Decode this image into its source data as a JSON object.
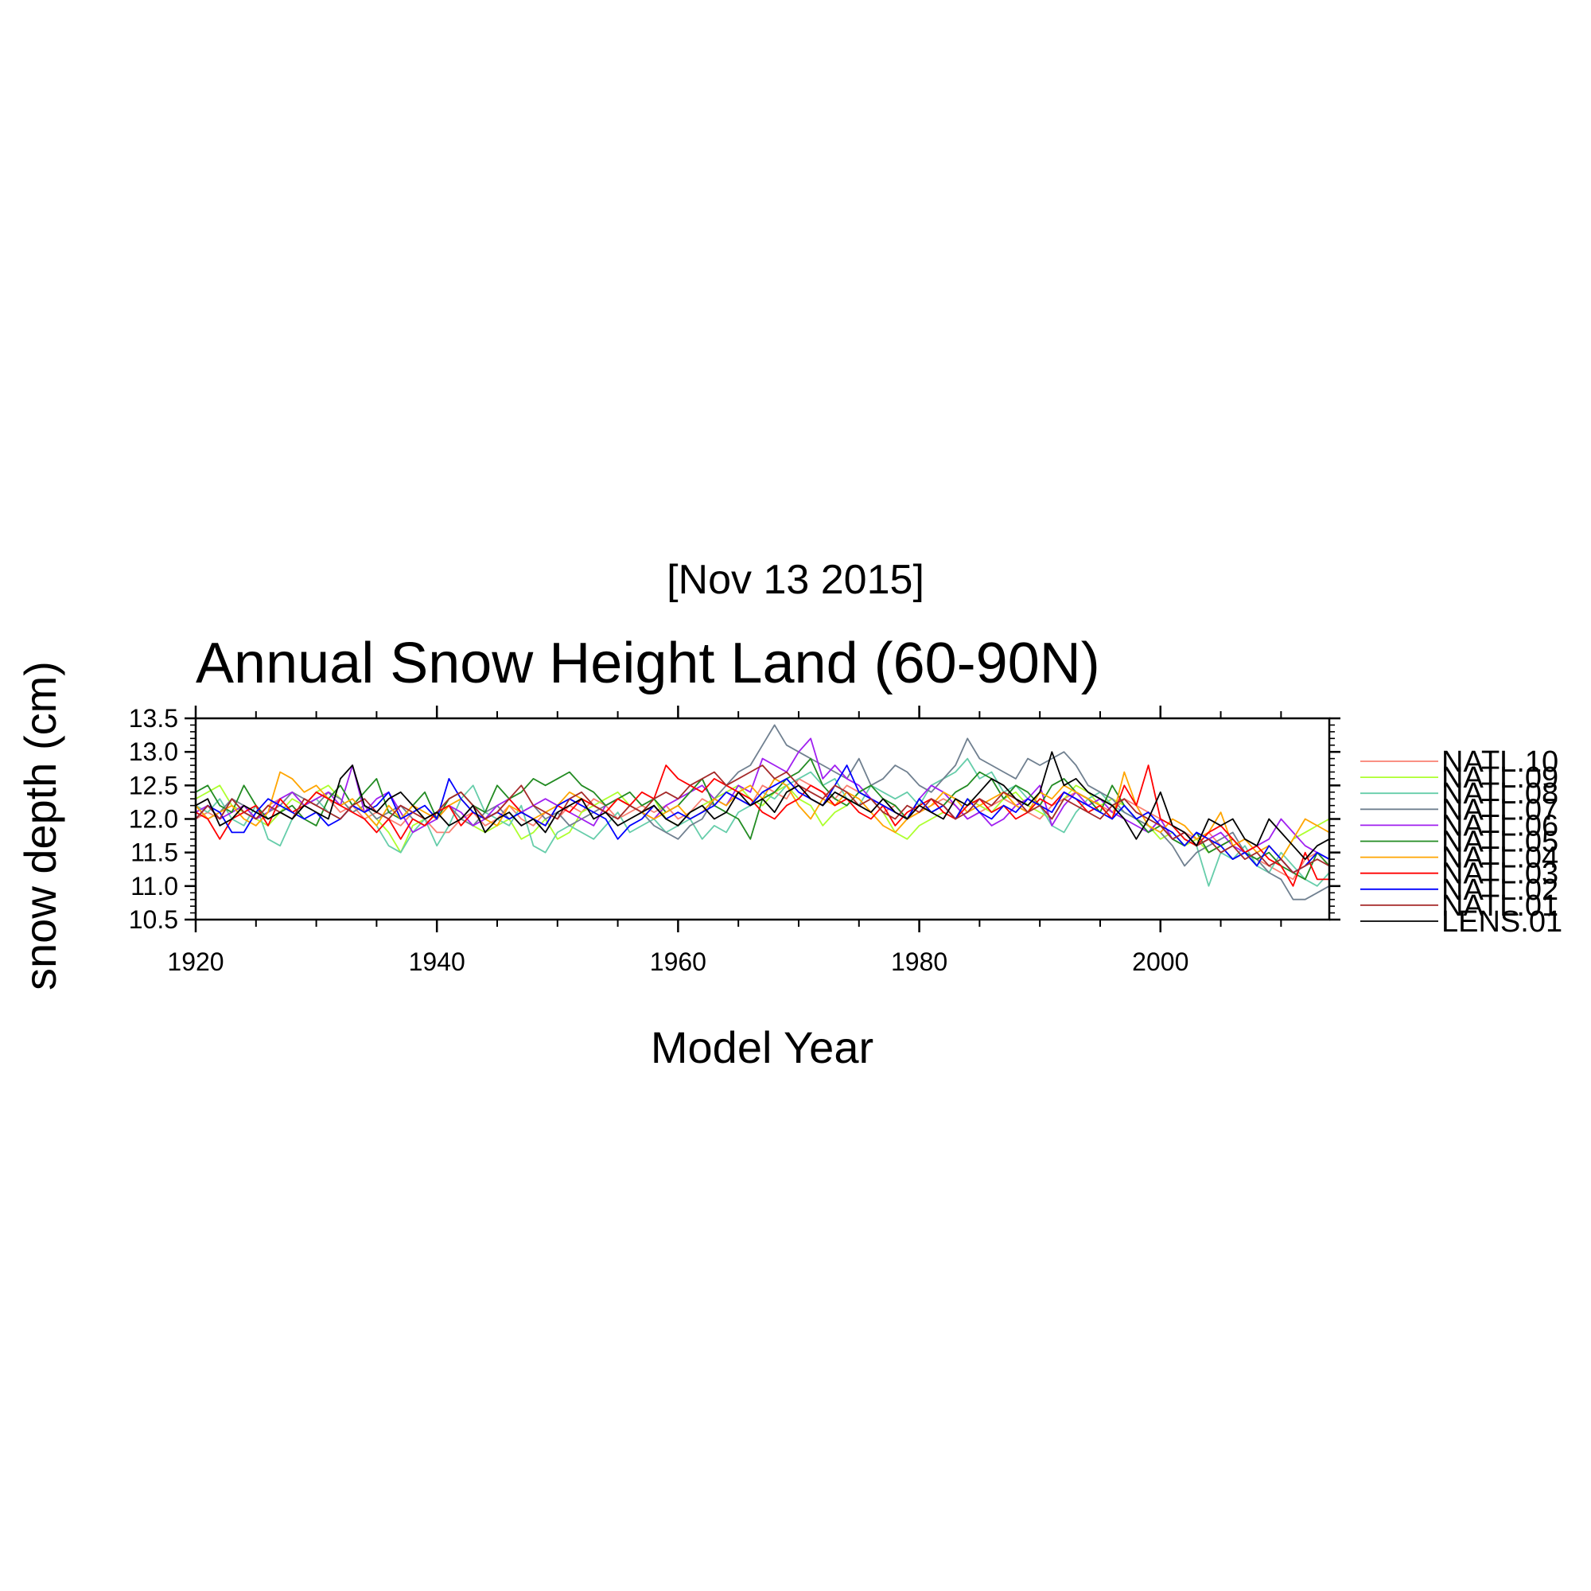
{
  "page": {
    "date": "[Nov 13 2015]"
  },
  "chart_data": {
    "type": "line",
    "title": "Annual Snow Height Land (60-90N)",
    "xlabel": "Model Year",
    "ylabel": "snow depth (cm)",
    "xlim": [
      1920,
      2014
    ],
    "ylim": [
      10.5,
      13.5
    ],
    "x_ticks": [
      1920,
      1940,
      1960,
      1980,
      2000
    ],
    "x_tick_labels": [
      "1920",
      "1940",
      "1960",
      "1980",
      "2000"
    ],
    "y_ticks": [
      10.5,
      11.0,
      11.5,
      12.0,
      12.5,
      13.0,
      13.5
    ],
    "y_tick_labels": [
      "10.5",
      "11.0",
      "11.5",
      "12.0",
      "12.5",
      "13.0",
      "13.5"
    ],
    "legend_position": "right",
    "grid": false,
    "x_start": 1920,
    "series": [
      {
        "name": "NATL.10",
        "color": "#fa8072",
        "values": [
          12.0,
          12.1,
          12.0,
          12.3,
          12.1,
          12.0,
          12.2,
          12.3,
          12.1,
          12.2,
          12.4,
          12.3,
          12.1,
          12.2,
          12.0,
          12.1,
          12.0,
          11.9,
          12.1,
          12.0,
          11.8,
          11.8,
          12.0,
          12.1,
          11.9,
          12.0,
          12.2,
          12.0,
          11.9,
          12.1,
          12.0,
          12.2,
          12.1,
          12.3,
          12.2,
          12.0,
          12.1,
          12.2,
          12.1,
          12.2,
          12.0,
          12.1,
          12.3,
          12.2,
          12.4,
          12.3,
          12.2,
          12.5,
          12.4,
          12.3,
          12.6,
          12.5,
          12.4,
          12.3,
          12.5,
          12.4,
          12.3,
          12.1,
          12.2,
          12.0,
          12.1,
          12.2,
          12.3,
          12.2,
          12.0,
          12.1,
          12.2,
          12.3,
          12.2,
          12.1,
          12.0,
          12.2,
          12.3,
          12.4,
          12.3,
          12.2,
          12.1,
          12.3,
          12.2,
          12.1,
          12.0,
          11.9,
          11.8,
          11.7,
          11.8,
          11.6,
          11.7,
          11.5,
          11.4,
          11.3,
          11.2,
          11.1,
          11.4,
          11.5,
          11.3
        ]
      },
      {
        "name": "NATL.09",
        "color": "#adff2f",
        "values": [
          12.3,
          12.4,
          12.5,
          12.2,
          12.1,
          12.0,
          11.9,
          12.1,
          12.3,
          12.2,
          12.4,
          12.5,
          12.3,
          12.1,
          12.2,
          12.0,
          11.8,
          11.5,
          11.9,
          12.0,
          12.1,
          12.2,
          12.0,
          11.9,
          11.8,
          11.9,
          12.0,
          11.7,
          11.8,
          12.0,
          11.7,
          11.8,
          12.1,
          12.2,
          12.3,
          12.4,
          12.2,
          12.1,
          12.3,
          12.0,
          11.9,
          12.1,
          12.2,
          12.3,
          12.4,
          12.5,
          12.3,
          12.2,
          12.4,
          12.5,
          12.3,
          12.2,
          11.9,
          12.1,
          12.2,
          12.4,
          12.3,
          12.1,
          11.8,
          11.7,
          11.9,
          12.0,
          12.1,
          12.0,
          12.3,
          12.2,
          12.1,
          12.3,
          12.4,
          12.2,
          12.1,
          12.0,
          12.3,
          12.5,
          12.4,
          12.2,
          12.3,
          12.2,
          12.0,
          11.9,
          11.7,
          11.8,
          11.6,
          11.7,
          11.5,
          11.6,
          11.4,
          11.5,
          11.3,
          11.6,
          11.4,
          11.7,
          11.8,
          11.9,
          12.0
        ]
      },
      {
        "name": "NATL.08",
        "color": "#66cdaa",
        "values": [
          12.2,
          12.1,
          12.3,
          12.0,
          11.9,
          12.2,
          11.7,
          11.6,
          12.0,
          12.2,
          12.3,
          12.1,
          12.0,
          12.2,
          12.1,
          11.9,
          11.6,
          11.5,
          11.8,
          12.0,
          11.6,
          11.9,
          12.3,
          12.5,
          12.1,
          12.0,
          11.9,
          12.2,
          11.6,
          11.5,
          11.8,
          11.9,
          11.8,
          11.7,
          11.9,
          12.1,
          11.8,
          11.9,
          12.0,
          11.8,
          11.9,
          12.0,
          11.7,
          11.9,
          11.8,
          12.1,
          12.2,
          12.4,
          12.3,
          12.5,
          12.6,
          12.7,
          12.5,
          12.6,
          12.3,
          12.2,
          12.5,
          12.4,
          12.3,
          12.4,
          12.2,
          12.5,
          12.6,
          12.7,
          12.9,
          12.6,
          12.7,
          12.4,
          12.5,
          12.3,
          12.2,
          11.9,
          11.8,
          12.1,
          12.3,
          12.4,
          12.2,
          12.1,
          12.0,
          11.8,
          12.0,
          11.9,
          11.7,
          11.6,
          11.0,
          11.5,
          11.4,
          11.6,
          11.3,
          11.2,
          11.5,
          11.3,
          11.1,
          11.0,
          11.2
        ]
      },
      {
        "name": "NATL.07",
        "color": "#708090",
        "values": [
          12.2,
          12.0,
          12.1,
          12.3,
          12.2,
          12.0,
          12.1,
          12.2,
          12.4,
          12.3,
          12.2,
          12.4,
          12.3,
          12.1,
          12.2,
          12.0,
          12.1,
          12.2,
          12.0,
          11.9,
          12.1,
          12.2,
          12.0,
          11.9,
          12.1,
          12.2,
          12.0,
          12.1,
          12.2,
          12.0,
          12.1,
          11.9,
          12.0,
          12.1,
          12.2,
          12.3,
          12.2,
          12.1,
          11.9,
          11.8,
          11.7,
          11.9,
          12.0,
          12.3,
          12.5,
          12.7,
          12.8,
          13.1,
          13.4,
          13.1,
          13.0,
          12.9,
          12.8,
          12.7,
          12.6,
          12.9,
          12.5,
          12.6,
          12.8,
          12.7,
          12.5,
          12.4,
          12.6,
          12.8,
          13.2,
          12.9,
          12.8,
          12.7,
          12.6,
          12.9,
          12.8,
          12.9,
          13.0,
          12.8,
          12.5,
          12.4,
          12.3,
          12.1,
          12.0,
          11.9,
          11.8,
          11.6,
          11.3,
          11.5,
          11.6,
          11.7,
          11.8,
          11.5,
          11.4,
          11.2,
          11.1,
          10.8,
          10.8,
          10.9,
          11.0
        ]
      },
      {
        "name": "NATL.06",
        "color": "#a020f0",
        "values": [
          12.1,
          12.2,
          12.0,
          12.1,
          12.2,
          12.0,
          12.1,
          12.3,
          12.4,
          12.2,
          12.3,
          12.4,
          12.2,
          12.8,
          12.1,
          12.3,
          12.4,
          12.1,
          11.8,
          11.9,
          12.0,
          12.2,
          12.1,
          11.9,
          12.0,
          12.2,
          12.3,
          12.1,
          12.2,
          12.3,
          12.2,
          12.1,
          12.0,
          11.9,
          12.2,
          12.3,
          12.2,
          12.1,
          12.0,
          12.2,
          12.3,
          12.4,
          12.5,
          12.3,
          12.2,
          12.5,
          12.4,
          12.9,
          12.8,
          12.7,
          13.0,
          13.2,
          12.6,
          12.8,
          12.6,
          12.5,
          12.3,
          12.2,
          12.1,
          12.0,
          12.3,
          12.5,
          12.4,
          12.2,
          12.0,
          12.1,
          11.9,
          12.0,
          12.2,
          12.3,
          12.5,
          11.9,
          12.2,
          12.4,
          12.2,
          12.3,
          12.1,
          12.0,
          11.9,
          11.8,
          12.0,
          11.7,
          11.8,
          11.6,
          11.7,
          11.8,
          11.6,
          11.5,
          11.6,
          11.7,
          12.0,
          11.8,
          11.6,
          11.5,
          11.4
        ]
      },
      {
        "name": "NATL.05",
        "color": "#228b22",
        "values": [
          12.4,
          12.5,
          12.2,
          12.1,
          12.5,
          12.2,
          12.0,
          12.1,
          12.2,
          12.0,
          11.9,
          12.3,
          12.5,
          12.2,
          12.4,
          12.6,
          12.1,
          12.0,
          12.2,
          12.4,
          12.0,
          12.3,
          12.4,
          12.2,
          12.1,
          12.5,
          12.3,
          12.4,
          12.6,
          12.5,
          12.6,
          12.7,
          12.5,
          12.4,
          12.2,
          12.3,
          12.4,
          12.2,
          12.3,
          12.1,
          12.2,
          12.4,
          12.6,
          12.2,
          12.1,
          12.0,
          11.7,
          12.3,
          12.4,
          12.6,
          12.7,
          12.9,
          12.5,
          12.3,
          12.2,
          12.4,
          12.5,
          12.3,
          12.2,
          12.0,
          12.3,
          12.1,
          12.2,
          12.4,
          12.5,
          12.7,
          12.6,
          12.3,
          12.5,
          12.4,
          12.2,
          12.5,
          12.6,
          12.4,
          12.3,
          12.1,
          12.5,
          12.2,
          12.0,
          11.8,
          11.9,
          11.7,
          11.6,
          11.8,
          11.5,
          11.6,
          11.7,
          11.5,
          11.4,
          11.5,
          11.3,
          11.2,
          11.1,
          11.5,
          11.3
        ]
      },
      {
        "name": "NATL.04",
        "color": "#ffa500",
        "values": [
          12.2,
          12.0,
          12.1,
          12.2,
          12.0,
          11.9,
          12.1,
          12.7,
          12.6,
          12.4,
          12.5,
          12.3,
          12.2,
          12.3,
          12.1,
          11.9,
          12.2,
          12.0,
          12.2,
          12.1,
          12.0,
          12.2,
          12.3,
          12.1,
          12.0,
          11.9,
          12.2,
          12.1,
          12.0,
          12.1,
          12.2,
          12.4,
          12.3,
          12.2,
          12.1,
          12.3,
          12.2,
          12.1,
          12.0,
          12.1,
          12.2,
          12.0,
          12.1,
          12.3,
          12.2,
          12.4,
          12.5,
          12.3,
          12.6,
          12.5,
          12.2,
          12.0,
          12.3,
          12.2,
          12.4,
          12.3,
          12.1,
          11.9,
          11.8,
          12.0,
          12.1,
          12.2,
          12.4,
          12.3,
          12.1,
          12.2,
          12.3,
          12.4,
          12.2,
          12.1,
          12.4,
          12.3,
          12.5,
          12.4,
          12.3,
          12.2,
          12.0,
          12.7,
          12.2,
          11.9,
          11.8,
          12.0,
          11.9,
          11.7,
          11.8,
          12.1,
          11.6,
          11.7,
          11.5,
          11.6,
          11.4,
          11.7,
          12.0,
          11.9,
          11.8
        ]
      },
      {
        "name": "NATL.03",
        "color": "#ff0000",
        "values": [
          12.1,
          12.0,
          11.7,
          12.0,
          12.1,
          12.2,
          11.9,
          12.3,
          12.1,
          12.2,
          12.4,
          12.3,
          12.2,
          12.1,
          12.0,
          11.8,
          12.0,
          11.7,
          12.0,
          11.9,
          12.1,
          12.2,
          11.9,
          12.1,
          12.0,
          12.1,
          12.3,
          12.1,
          12.0,
          11.9,
          12.2,
          12.1,
          12.3,
          12.2,
          12.1,
          12.3,
          12.2,
          12.4,
          12.3,
          12.8,
          12.6,
          12.5,
          12.4,
          12.6,
          12.5,
          12.4,
          12.3,
          12.1,
          12.0,
          12.2,
          12.3,
          12.5,
          12.4,
          12.2,
          12.3,
          12.1,
          12.0,
          12.2,
          11.9,
          12.1,
          12.2,
          12.3,
          12.1,
          12.0,
          12.2,
          12.3,
          12.1,
          12.2,
          12.0,
          12.1,
          12.3,
          12.2,
          12.4,
          12.3,
          12.1,
          12.2,
          12.0,
          12.5,
          12.2,
          12.8,
          12.0,
          11.9,
          11.7,
          11.6,
          11.8,
          11.9,
          11.7,
          11.5,
          11.6,
          11.4,
          11.3,
          11.0,
          11.5,
          11.1,
          11.1
        ]
      },
      {
        "name": "NATL.02",
        "color": "#0000ff",
        "values": [
          12.0,
          12.2,
          12.1,
          11.8,
          11.8,
          12.1,
          12.3,
          12.2,
          12.1,
          12.0,
          12.1,
          11.9,
          12.0,
          12.2,
          12.1,
          12.2,
          12.4,
          12.0,
          12.1,
          12.2,
          12.0,
          12.6,
          12.3,
          12.1,
          12.0,
          12.1,
          12.0,
          12.1,
          12.0,
          11.9,
          12.2,
          12.3,
          12.2,
          12.1,
          12.0,
          11.7,
          11.9,
          12.0,
          12.2,
          12.0,
          12.1,
          12.0,
          12.1,
          12.2,
          12.4,
          12.3,
          12.2,
          12.4,
          12.5,
          12.6,
          12.4,
          12.3,
          12.2,
          12.5,
          12.8,
          12.4,
          12.3,
          12.2,
          12.1,
          12.0,
          12.3,
          12.1,
          12.2,
          12.0,
          12.3,
          12.1,
          12.0,
          12.2,
          12.1,
          12.3,
          12.2,
          12.1,
          12.4,
          12.3,
          12.2,
          12.1,
          12.0,
          12.2,
          12.0,
          12.1,
          11.9,
          11.8,
          11.6,
          11.8,
          11.7,
          11.6,
          11.4,
          11.5,
          11.3,
          11.6,
          11.4,
          11.2,
          11.3,
          11.5,
          11.4
        ]
      },
      {
        "name": "NATL.01",
        "color": "#a52a2a",
        "values": [
          12.0,
          12.2,
          12.0,
          12.3,
          12.1,
          12.0,
          12.2,
          12.1,
          12.0,
          12.3,
          12.2,
          12.1,
          12.0,
          12.2,
          12.3,
          12.1,
          12.0,
          12.2,
          12.1,
          12.0,
          12.1,
          12.3,
          12.4,
          12.2,
          12.0,
          12.1,
          12.3,
          12.5,
          12.2,
          12.1,
          12.0,
          12.3,
          12.4,
          12.2,
          12.1,
          12.0,
          12.2,
          12.1,
          12.3,
          12.4,
          12.3,
          12.5,
          12.6,
          12.7,
          12.5,
          12.6,
          12.7,
          12.8,
          12.6,
          12.7,
          12.5,
          12.4,
          12.3,
          12.5,
          12.4,
          12.2,
          12.3,
          12.1,
          12.0,
          12.2,
          12.1,
          12.3,
          12.2,
          12.0,
          12.1,
          12.3,
          12.2,
          12.4,
          12.3,
          12.1,
          12.2,
          12.0,
          12.3,
          12.2,
          12.1,
          12.0,
          12.2,
          12.3,
          12.1,
          12.0,
          11.9,
          11.7,
          11.8,
          11.6,
          11.7,
          11.5,
          11.6,
          11.4,
          11.5,
          11.3,
          11.4,
          11.2,
          11.3,
          11.4,
          11.3
        ]
      },
      {
        "name": "LENS.01",
        "color": "#000000",
        "values": [
          12.2,
          12.3,
          11.9,
          12.0,
          12.2,
          12.1,
          12.0,
          12.1,
          12.0,
          12.2,
          12.1,
          12.0,
          12.6,
          12.8,
          12.2,
          12.1,
          12.3,
          12.4,
          12.2,
          12.0,
          12.1,
          11.9,
          12.0,
          12.2,
          11.8,
          12.0,
          12.1,
          11.9,
          12.0,
          11.8,
          12.1,
          12.2,
          12.3,
          12.0,
          12.1,
          11.9,
          12.0,
          12.1,
          12.2,
          12.0,
          11.9,
          12.1,
          12.2,
          12.0,
          12.1,
          12.4,
          12.2,
          12.3,
          12.1,
          12.4,
          12.5,
          12.3,
          12.2,
          12.4,
          12.3,
          12.2,
          12.1,
          12.3,
          12.1,
          12.0,
          12.2,
          12.1,
          12.0,
          12.3,
          12.2,
          12.4,
          12.6,
          12.5,
          12.3,
          12.2,
          12.4,
          13.0,
          12.5,
          12.6,
          12.4,
          12.3,
          12.2,
          12.0,
          11.7,
          12.0,
          12.4,
          11.9,
          11.8,
          11.6,
          12.0,
          11.9,
          12.0,
          11.7,
          11.6,
          12.0,
          11.8,
          11.6,
          11.4,
          11.6,
          11.7
        ]
      }
    ]
  }
}
